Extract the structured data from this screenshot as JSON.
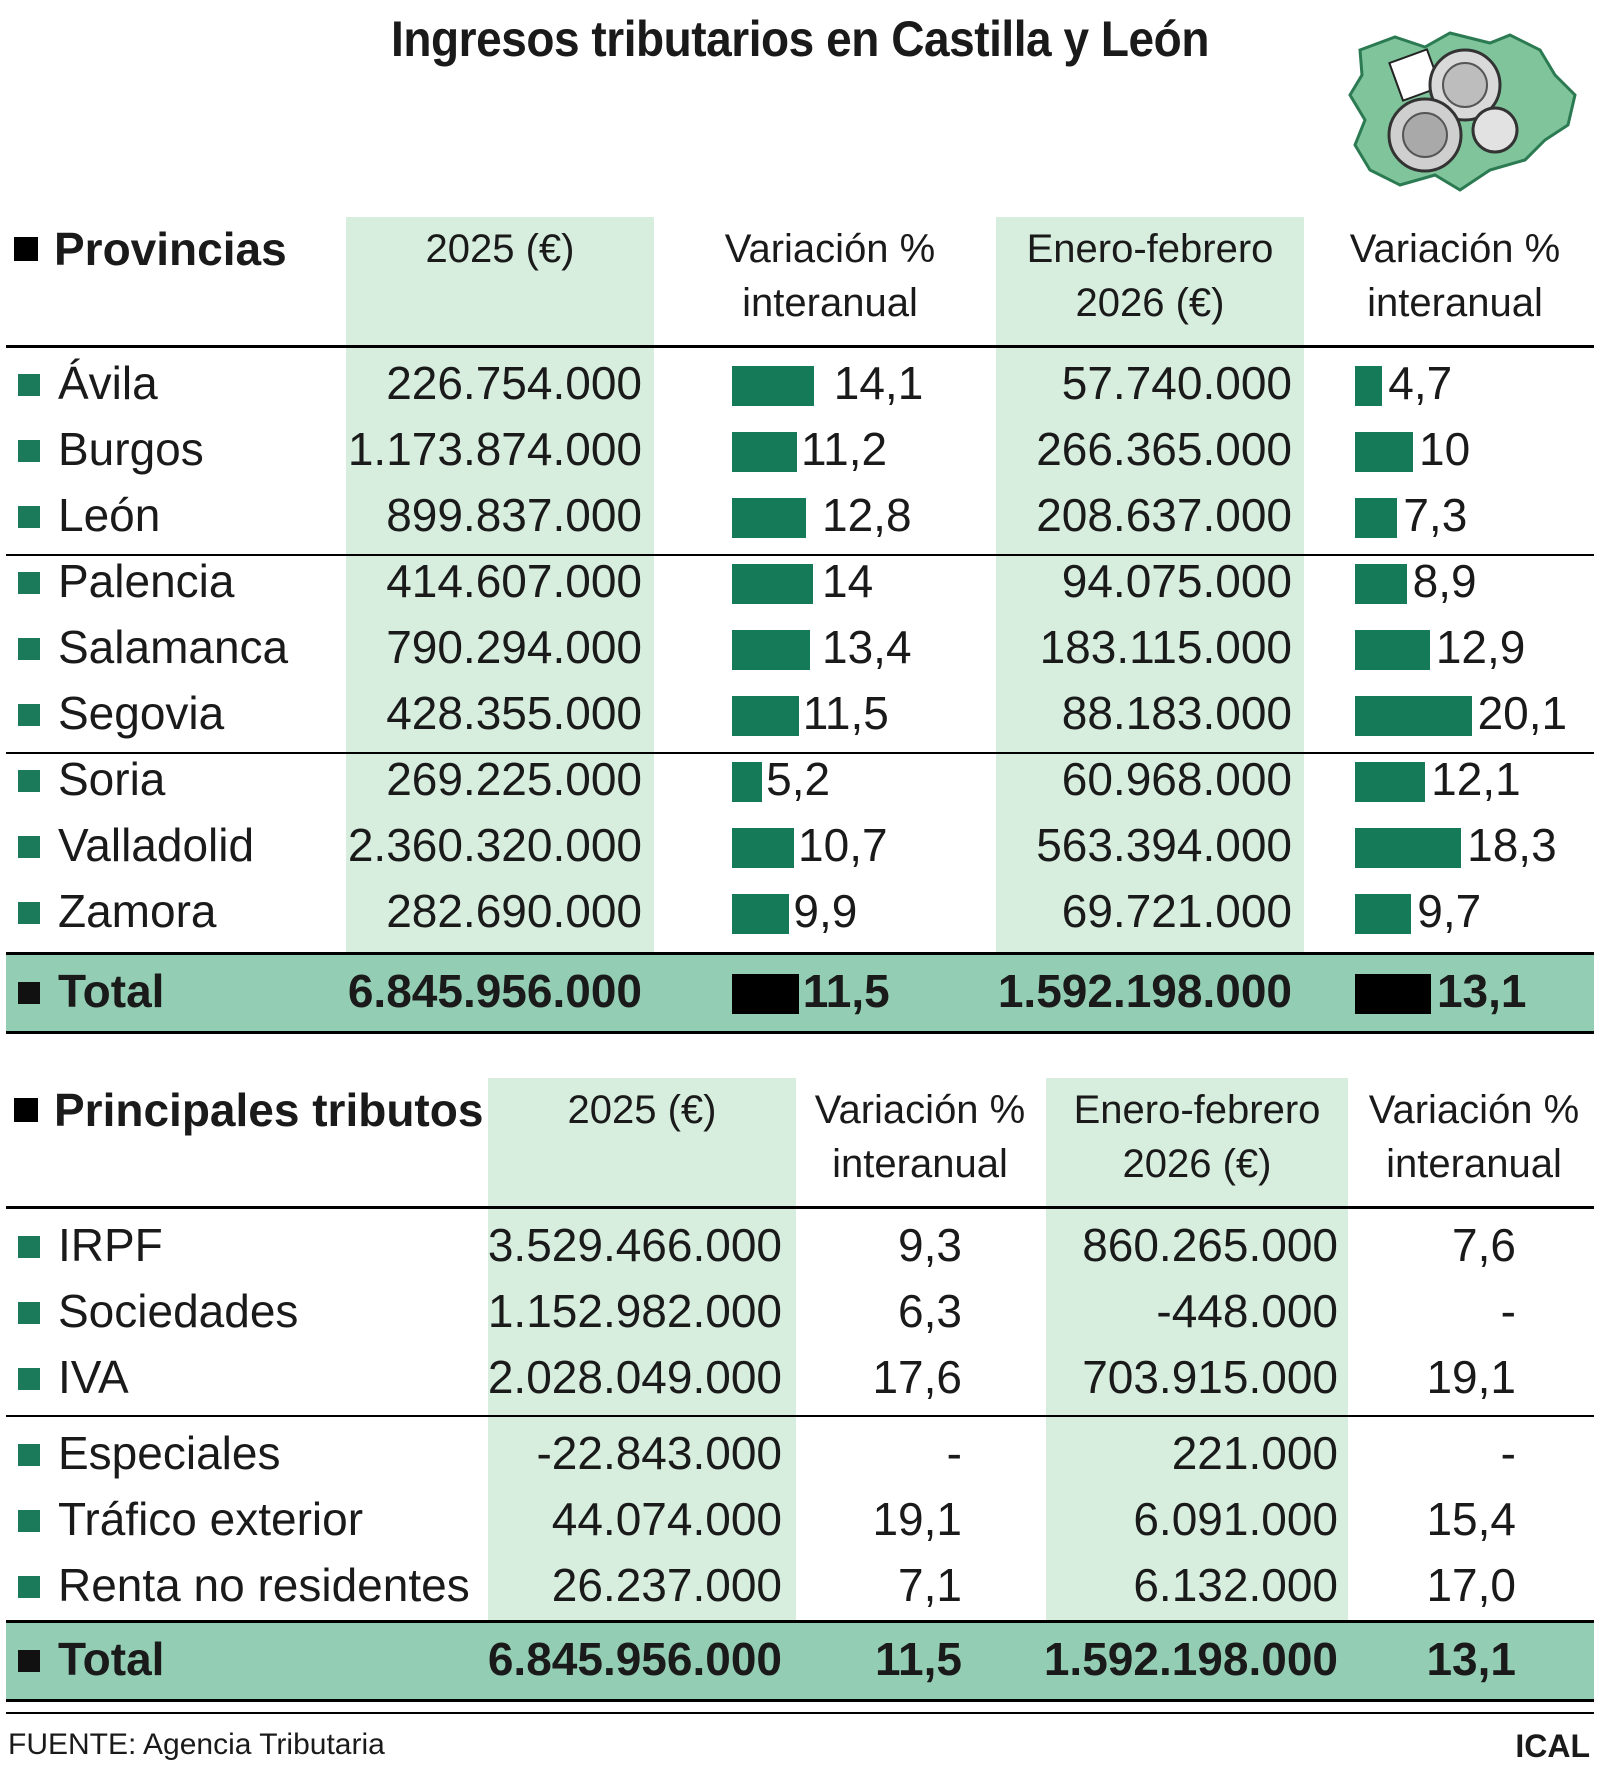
{
  "title": "Ingresos tributarios en Castilla y León",
  "colors": {
    "accent_bar": "#157a58",
    "column_bg": "#d7eedf",
    "total_bg": "#93ceb4"
  },
  "provincias": {
    "heading": "Provincias",
    "col_2025": "2025 (€)",
    "col_var1_l1": "Variación %",
    "col_var1_l2": "interanual",
    "col_ef_l1": "Enero-febrero",
    "col_ef_l2": "2026 (€)",
    "col_var2_l1": "Variación %",
    "col_var2_l2": "interanual",
    "rows": [
      {
        "name": "Ávila",
        "v2025": "226.754.000",
        "var1": "14,1",
        "ef2026": "57.740.000",
        "var2": "4,7"
      },
      {
        "name": "Burgos",
        "v2025": "1.173.874.000",
        "var1": "11,2",
        "ef2026": "266.365.000",
        "var2": "10"
      },
      {
        "name": "León",
        "v2025": "899.837.000",
        "var1": "12,8",
        "ef2026": "208.637.000",
        "var2": "7,3"
      },
      {
        "name": "Palencia",
        "v2025": "414.607.000",
        "var1": "14",
        "ef2026": "94.075.000",
        "var2": "8,9"
      },
      {
        "name": "Salamanca",
        "v2025": "790.294.000",
        "var1": "13,4",
        "ef2026": "183.115.000",
        "var2": "12,9"
      },
      {
        "name": "Segovia",
        "v2025": "428.355.000",
        "var1": "11,5",
        "ef2026": "88.183.000",
        "var2": "20,1"
      },
      {
        "name": "Soria",
        "v2025": "269.225.000",
        "var1": "5,2",
        "ef2026": "60.968.000",
        "var2": "12,1"
      },
      {
        "name": "Valladolid",
        "v2025": "2.360.320.000",
        "var1": "10,7",
        "ef2026": "563.394.000",
        "var2": "18,3"
      },
      {
        "name": "Zamora",
        "v2025": "282.690.000",
        "var1": "9,9",
        "ef2026": "69.721.000",
        "var2": "9,7"
      }
    ],
    "total": {
      "name": "Total",
      "v2025": "6.845.956.000",
      "var1": "11,5",
      "ef2026": "1.592.198.000",
      "var2": "13,1"
    }
  },
  "tributos": {
    "heading": "Principales tributos",
    "col_2025": "2025 (€)",
    "col_var1_l1": "Variación %",
    "col_var1_l2": "interanual",
    "col_ef_l1": "Enero-febrero",
    "col_ef_l2": "2026 (€)",
    "col_var2_l1": "Variación %",
    "col_var2_l2": "interanual",
    "rows": [
      {
        "name": "IRPF",
        "v2025": "3.529.466.000",
        "var1": "9,3",
        "ef2026": "860.265.000",
        "var2": "7,6"
      },
      {
        "name": "Sociedades",
        "v2025": "1.152.982.000",
        "var1": "6,3",
        "ef2026": "-448.000",
        "var2": "-"
      },
      {
        "name": "IVA",
        "v2025": "2.028.049.000",
        "var1": "17,6",
        "ef2026": "703.915.000",
        "var2": "19,1"
      },
      {
        "name": "Especiales",
        "v2025": "-22.843.000",
        "var1": "-",
        "ef2026": "221.000",
        "var2": "-"
      },
      {
        "name": "Tráfico exterior",
        "v2025": "44.074.000",
        "var1": "19,1",
        "ef2026": "6.091.000",
        "var2": "15,4"
      },
      {
        "name": "Renta no residentes",
        "v2025": "26.237.000",
        "var1": "7,1",
        "ef2026": "6.132.000",
        "var2": "17,0"
      }
    ],
    "total": {
      "name": "Total",
      "v2025": "6.845.956.000",
      "var1": "11,5",
      "ef2026": "1.592.198.000",
      "var2": "13,1"
    }
  },
  "footer": {
    "source": "FUENTE: Agencia Tributaria",
    "brand": "ICAL"
  }
}
